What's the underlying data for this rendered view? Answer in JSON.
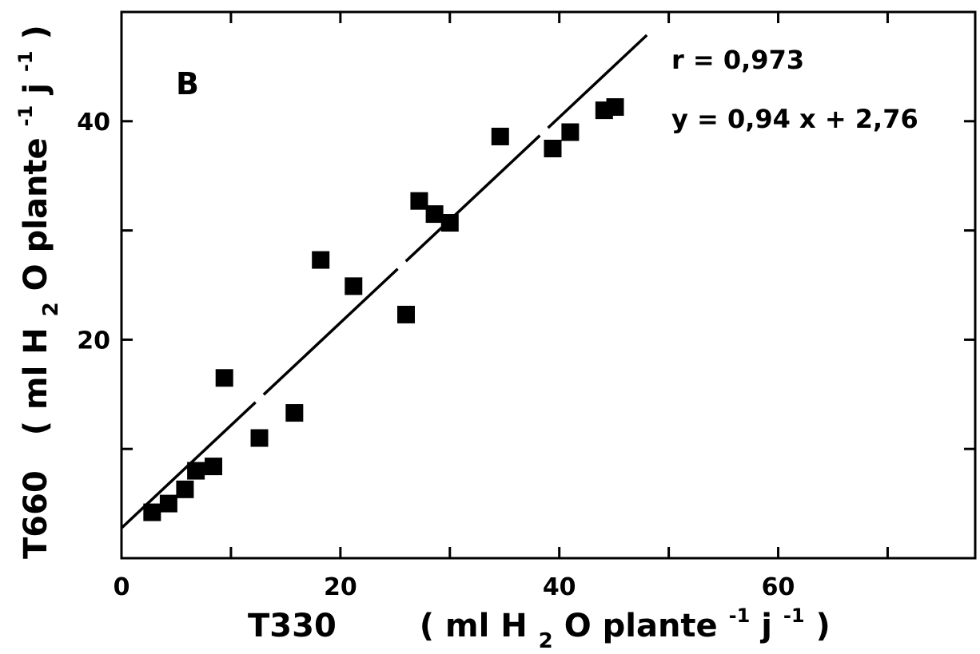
{
  "chart_data": {
    "type": "scatter",
    "panel_label": "B",
    "xlabel": {
      "name": "T330",
      "unit_prefix": "( ml H",
      "unit_sub": "2",
      "unit_mid": "O plante",
      "unit_sup1": "-1",
      "unit_j": " j",
      "unit_sup2": "-1",
      "unit_close": ")"
    },
    "ylabel": {
      "name": "T660",
      "unit_prefix": "( ml H",
      "unit_sub": "2",
      "unit_mid": "O plante",
      "unit_sup1": "-1",
      "unit_j": " j",
      "unit_sup2": "-1",
      "unit_close": ")"
    },
    "xlim": [
      0,
      78
    ],
    "ylim": [
      0,
      50
    ],
    "xticks": [
      0,
      20,
      40,
      60
    ],
    "xtick_labels": [
      "0",
      "20",
      "40",
      "60"
    ],
    "yticks": [
      20,
      40
    ],
    "ytick_labels": [
      "20",
      "40"
    ],
    "grid": false,
    "annotations": {
      "r": "r = 0,973",
      "equation": "y = 0,94 x + 2,76"
    },
    "regression": {
      "slope": 0.94,
      "intercept": 2.76,
      "x_range": [
        0,
        48
      ]
    },
    "points": [
      {
        "x": 2.8,
        "y": 4.2
      },
      {
        "x": 4.3,
        "y": 5.0
      },
      {
        "x": 5.8,
        "y": 6.3
      },
      {
        "x": 6.8,
        "y": 8.0
      },
      {
        "x": 8.4,
        "y": 8.4
      },
      {
        "x": 9.4,
        "y": 16.5
      },
      {
        "x": 12.6,
        "y": 11.0
      },
      {
        "x": 15.8,
        "y": 13.3
      },
      {
        "x": 18.2,
        "y": 27.3
      },
      {
        "x": 21.2,
        "y": 24.9
      },
      {
        "x": 26.0,
        "y": 22.3
      },
      {
        "x": 27.2,
        "y": 32.7
      },
      {
        "x": 28.6,
        "y": 31.5
      },
      {
        "x": 30.0,
        "y": 30.7
      },
      {
        "x": 34.6,
        "y": 38.6
      },
      {
        "x": 39.4,
        "y": 37.5
      },
      {
        "x": 41.0,
        "y": 39.0
      },
      {
        "x": 44.1,
        "y": 41.0
      },
      {
        "x": 45.1,
        "y": 41.3
      }
    ]
  }
}
